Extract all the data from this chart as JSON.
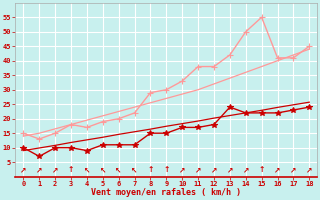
{
  "background_color": "#c8f0ee",
  "grid_color": "#ffffff",
  "xlabel": "Vent moyen/en rafales ( km/h )",
  "xlabel_color": "#cc0000",
  "x_values": [
    0,
    1,
    2,
    3,
    4,
    5,
    6,
    7,
    8,
    9,
    10,
    11,
    12,
    13,
    14,
    15,
    16,
    17,
    18
  ],
  "ylim": [
    0,
    60
  ],
  "yticks": [
    5,
    10,
    15,
    20,
    25,
    30,
    35,
    40,
    45,
    50,
    55
  ],
  "series": [
    {
      "name": "line1_dark_red",
      "color": "#cc0000",
      "linewidth": 1.0,
      "marker": "*",
      "markersize": 4,
      "y": [
        10,
        7,
        10,
        10,
        9,
        11,
        11,
        11,
        15,
        15,
        17,
        17,
        18,
        24,
        22,
        22,
        22,
        23,
        24
      ]
    },
    {
      "name": "line2_dark_red_straight",
      "color": "#cc0000",
      "linewidth": 0.9,
      "marker": null,
      "markersize": 0,
      "y": [
        9,
        9.9,
        10.8,
        11.8,
        12.7,
        13.6,
        14.6,
        15.5,
        16.4,
        17.4,
        18.3,
        19.2,
        20.2,
        21.1,
        22.0,
        22.9,
        23.9,
        24.8,
        25.7
      ]
    },
    {
      "name": "line3_light_pink",
      "color": "#ff9999",
      "linewidth": 1.0,
      "marker": "+",
      "markersize": 4,
      "y": [
        15,
        13,
        15,
        18,
        17,
        19,
        20,
        22,
        29,
        30,
        33,
        38,
        38,
        42,
        50,
        55,
        41,
        41,
        45
      ]
    },
    {
      "name": "line4_light_pink_straight",
      "color": "#ff9999",
      "linewidth": 0.9,
      "marker": null,
      "markersize": 0,
      "y": [
        14,
        15,
        16.5,
        18,
        19.5,
        21,
        22.5,
        24,
        25.5,
        27,
        28.5,
        30,
        32,
        34,
        36,
        38,
        40,
        42,
        44
      ]
    }
  ],
  "tick_label_color": "#cc0000",
  "tick_color": "#cc0000",
  "spine_color": "#cc0000",
  "wind_arrows": [
    "↗",
    "↗",
    "↗",
    "↑",
    "↖",
    "↖",
    "↖",
    "↖",
    "↑",
    "↑",
    "↗",
    "↗",
    "↗",
    "↗",
    "↗",
    "↑",
    "↗",
    "↗",
    "↗"
  ]
}
